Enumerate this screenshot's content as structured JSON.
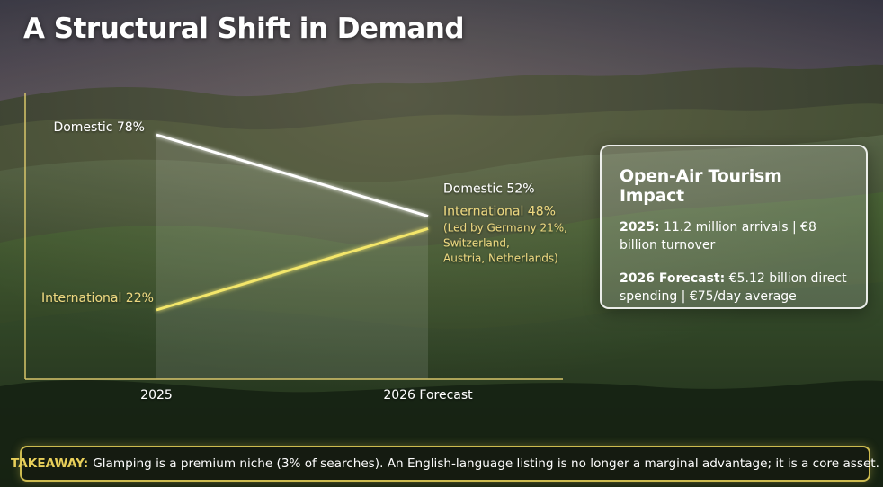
{
  "page": {
    "title": "A Structural Shift in Demand"
  },
  "colors": {
    "domestic_line": "#ffffff",
    "international_line": "#f3e66a",
    "international_label": "#ecd780",
    "axis": "#d7c56a",
    "accent": "#e8cf5a"
  },
  "chart_data": {
    "type": "line",
    "categories": [
      "2025",
      "2026 Forecast"
    ],
    "series": [
      {
        "name": "Domestic",
        "values": [
          78,
          52
        ],
        "labels": [
          "Domestic 78%",
          "Domestic 52%"
        ],
        "color": "#ffffff"
      },
      {
        "name": "International",
        "values": [
          22,
          48
        ],
        "labels": [
          "International 22%",
          "International 48%"
        ],
        "color": "#f3e66a"
      }
    ],
    "annotation": [
      "(Led by Germany 21%,",
      "Switzerland,",
      "Austria, Netherlands)"
    ],
    "ylim": [
      0,
      100
    ],
    "grid": false,
    "legend": "none"
  },
  "impact_card": {
    "title": "Open-Air Tourism Impact",
    "line1_label": "2025:",
    "line1_text": " 11.2 million arrivals | €8 billion turnover",
    "line2_label": "2026 Forecast:",
    "line2_text": " €5.12 billion direct spending | €75/day average"
  },
  "takeaway": {
    "label": "TAKEAWAY:",
    "text": "Glamping is a premium niche (3% of searches). An English-language listing is no longer a marginal advantage; it is a core asset."
  }
}
